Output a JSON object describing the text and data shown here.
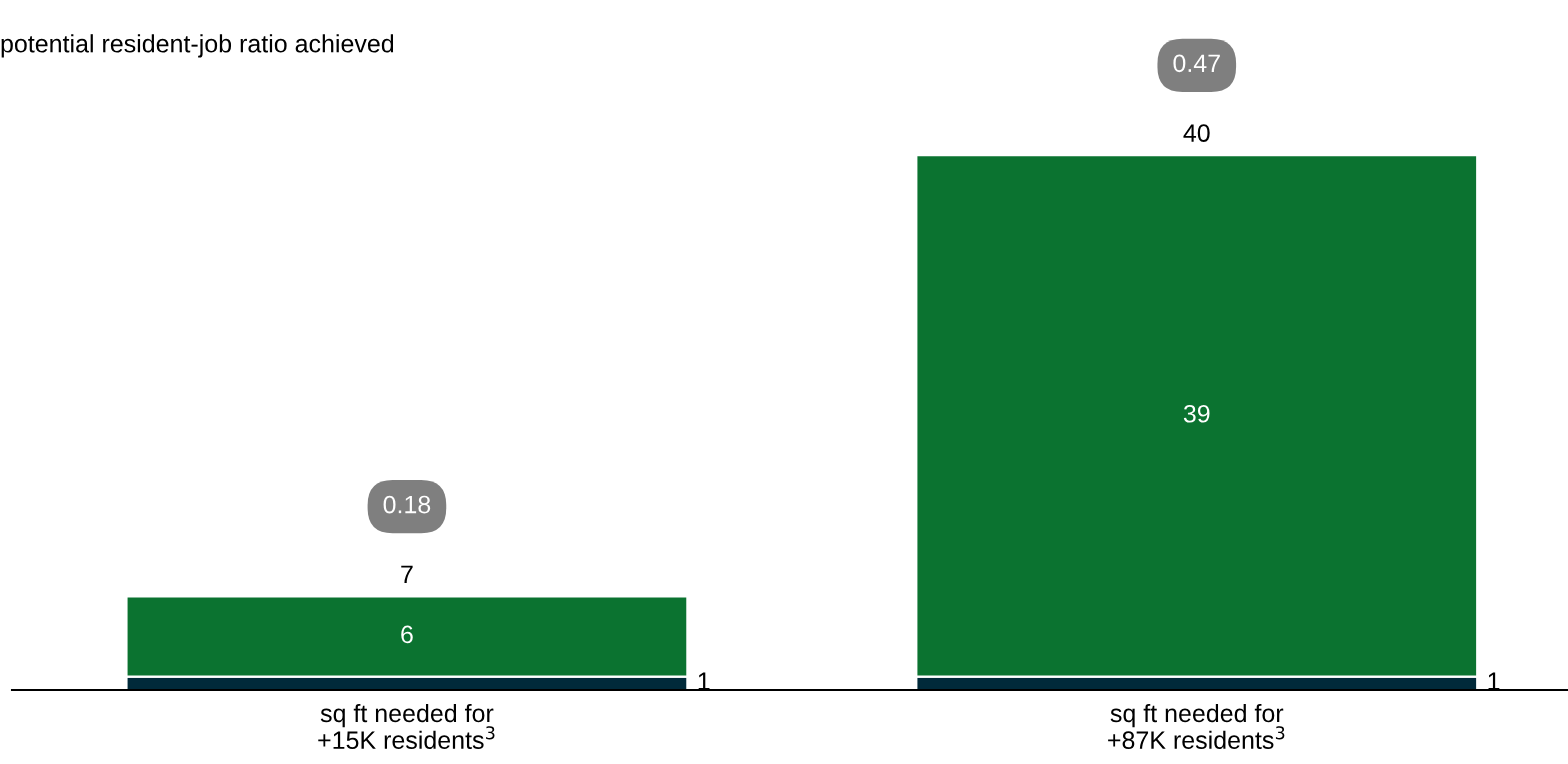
{
  "chart_data": {
    "type": "bar",
    "stacked": true,
    "title": "potential resident-job ratio achieved",
    "categories": [
      "sq ft needed for\n+15K residents$^{3}$",
      "sq ft needed for\n+87K residents$^{3}$"
    ],
    "series": [
      {
        "color": "#012a3a",
        "values": [
          1,
          1
        ],
        "value_labels": [
          "1",
          "1"
        ]
      },
      {
        "color": "#0b7330",
        "values": [
          6,
          39
        ],
        "value_labels": [
          "6",
          "39"
        ]
      }
    ],
    "totals": [
      "7",
      "40"
    ],
    "annotations": [
      "0.18",
      "0.47"
    ],
    "legend": false
  }
}
